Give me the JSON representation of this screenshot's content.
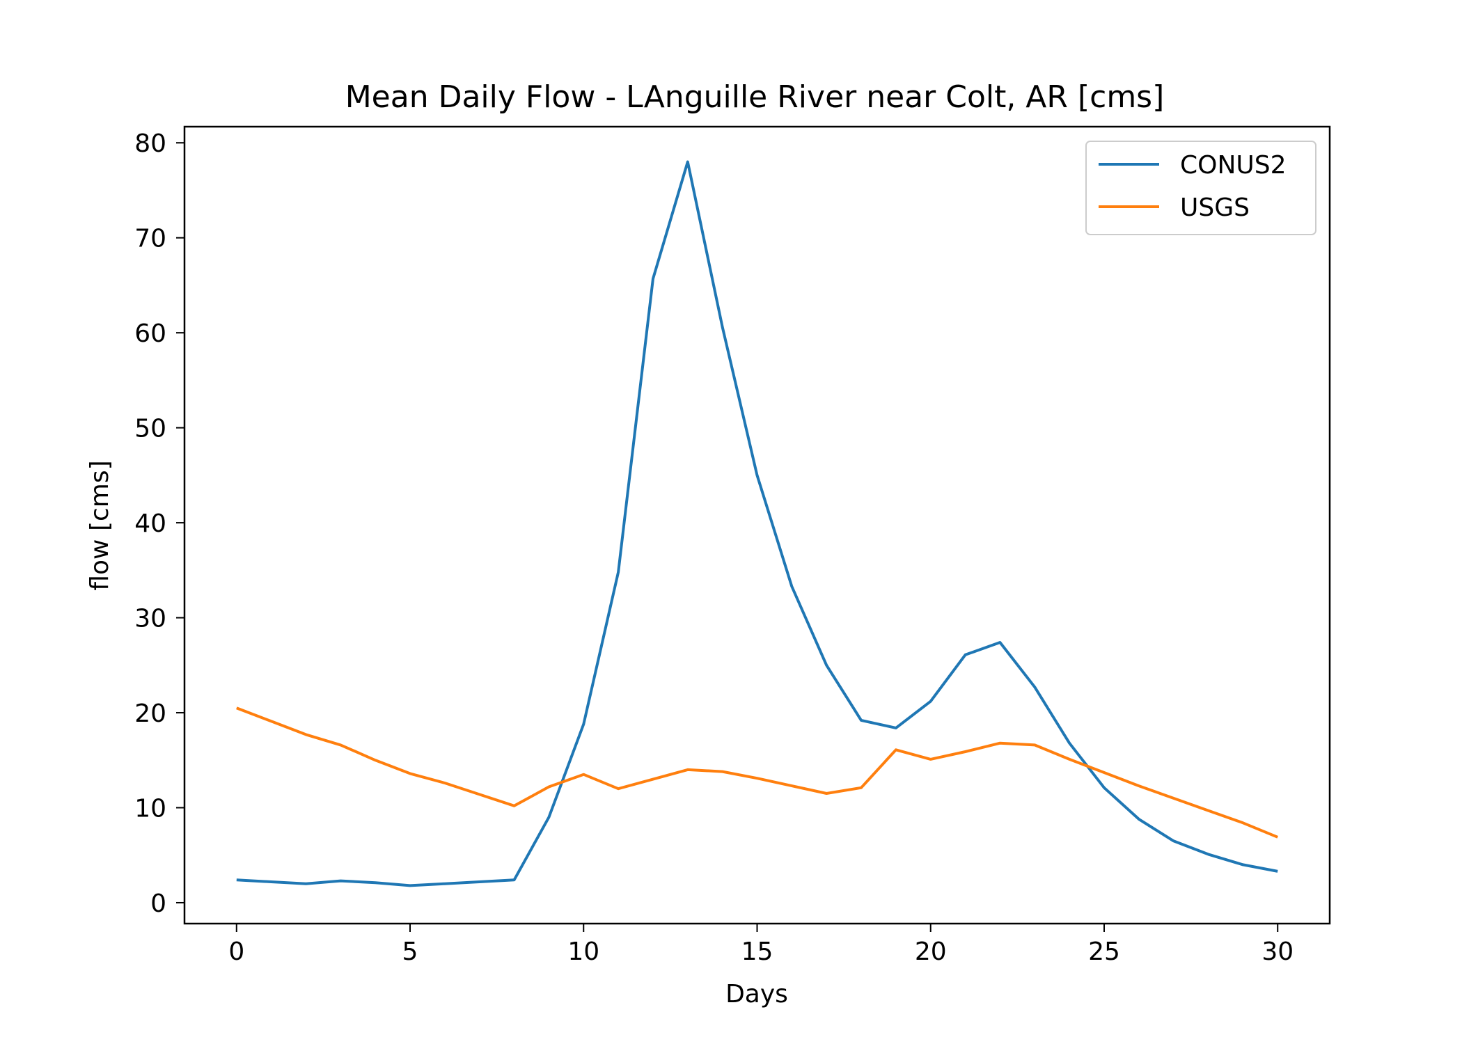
{
  "chart_data": {
    "type": "line",
    "title": "Mean Daily Flow - LAnguille River near Colt, AR [cms]",
    "xlabel": "Days",
    "ylabel": "flow [cms]",
    "xlim": [
      -1.5,
      31.5
    ],
    "ylim": [
      -2.2,
      81.7
    ],
    "xticks": [
      0,
      5,
      10,
      15,
      20,
      25,
      30
    ],
    "yticks": [
      0,
      10,
      20,
      30,
      40,
      50,
      60,
      70,
      80
    ],
    "grid": false,
    "legend": "top-right",
    "x": [
      0,
      1,
      2,
      3,
      4,
      5,
      6,
      7,
      8,
      9,
      10,
      11,
      12,
      13,
      14,
      15,
      16,
      17,
      18,
      19,
      20,
      21,
      22,
      23,
      24,
      25,
      26,
      27,
      28,
      29,
      30
    ],
    "series": [
      {
        "name": "CONUS2",
        "color": "#1f77b4",
        "values": [
          2.4,
          2.2,
          2.0,
          2.3,
          2.1,
          1.8,
          2.0,
          2.2,
          2.4,
          9.0,
          18.8,
          34.8,
          65.7,
          78.0,
          60.6,
          45.0,
          33.3,
          25.0,
          19.2,
          18.4,
          21.2,
          26.1,
          27.4,
          22.7,
          16.8,
          12.1,
          8.8,
          6.5,
          5.1,
          4.0,
          3.3
        ],
        "values_from_pixels": false
      },
      {
        "name": "USGS",
        "color": "#ff7f0e",
        "values": [
          20.5,
          19.1,
          17.7,
          16.6,
          15.0,
          13.6,
          12.6,
          11.4,
          10.2,
          12.2,
          13.5,
          12.0,
          13.0,
          14.0,
          13.8,
          13.1,
          12.3,
          11.5,
          12.1,
          16.1,
          15.1,
          15.9,
          16.8,
          16.6,
          15.1,
          13.7,
          12.3,
          11.0,
          9.7,
          8.4,
          6.9
        ]
      }
    ]
  }
}
